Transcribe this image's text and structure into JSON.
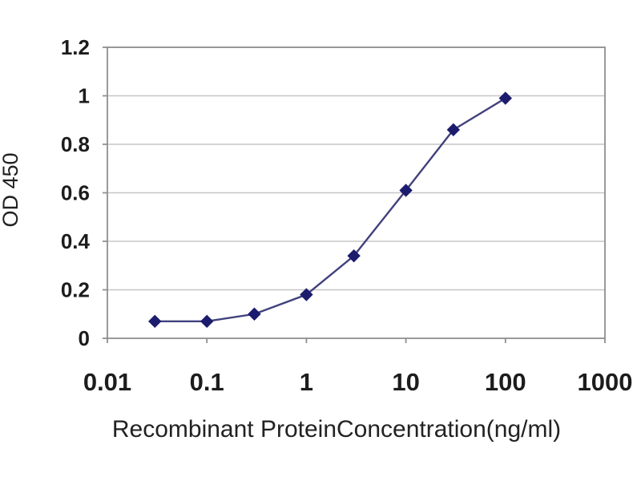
{
  "chart_data": {
    "type": "line",
    "title": "",
    "xlabel": "Recombinant ProteinConcentration(ng/ml)",
    "ylabel": "OD 450",
    "x_scale": "log",
    "x": [
      0.03,
      0.1,
      0.3,
      1,
      3,
      10,
      30,
      100
    ],
    "y": [
      0.07,
      0.07,
      0.1,
      0.18,
      0.34,
      0.61,
      0.86,
      0.99
    ],
    "x_ticks": [
      0.01,
      0.1,
      1,
      10,
      100,
      1000
    ],
    "x_tick_labels": [
      "0.01",
      "0.1",
      "1",
      "10",
      "100",
      "1000"
    ],
    "y_ticks": [
      0,
      0.2,
      0.4,
      0.6,
      0.8,
      1,
      1.2
    ],
    "y_tick_labels": [
      "0",
      "0.2",
      "0.4",
      "0.6",
      "0.8",
      "1",
      "1.2"
    ],
    "xlim": [
      0.01,
      1000
    ],
    "ylim": [
      0,
      1.2
    ],
    "grid": "horizontal",
    "legend": "none",
    "marker": "diamond",
    "colors": {
      "line": "#41417e",
      "marker": "#1c1c6e",
      "grid": "#c6c6c6",
      "axis": "#8f8f8f",
      "text": "#1c1c1c",
      "background": "#ffffff"
    }
  }
}
